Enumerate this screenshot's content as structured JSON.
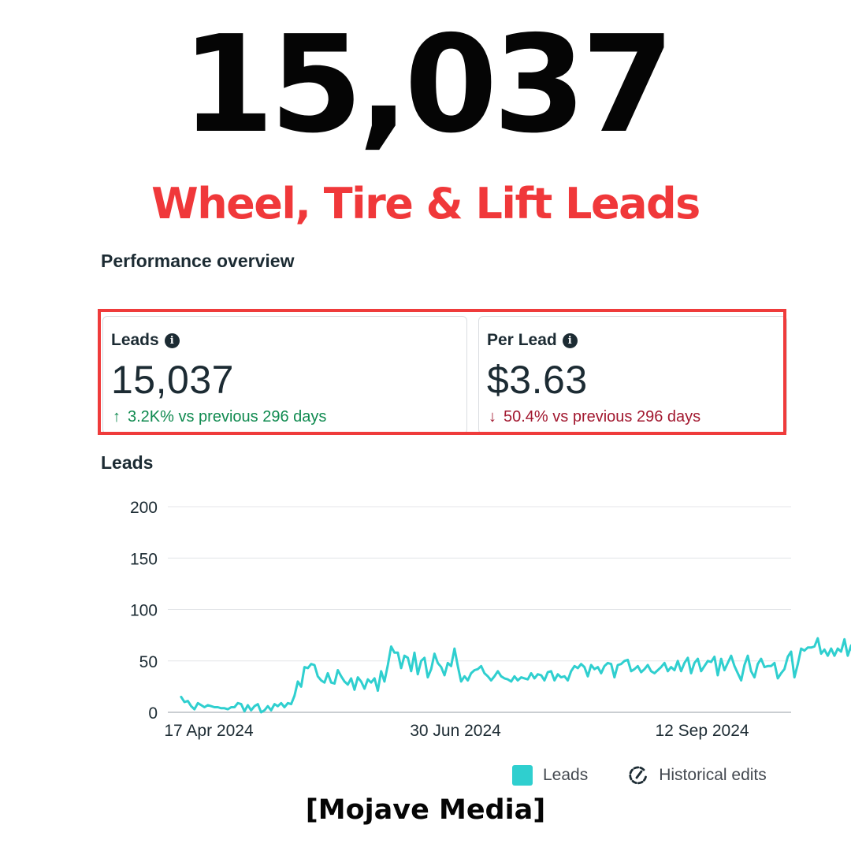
{
  "header": {
    "big_number": "15,037",
    "subtitle": "Wheel, Tire & Lift Leads"
  },
  "overview": {
    "title": "Performance overview",
    "cards": [
      {
        "label": "Leads",
        "value": "15,037",
        "delta_arrow": "↑",
        "delta_text": "3.2K% vs previous 296 days",
        "delta_direction": "up"
      },
      {
        "label": "Per Lead",
        "value": "$3.63",
        "delta_arrow": "↓",
        "delta_text": "50.4% vs previous 296 days",
        "delta_direction": "down"
      }
    ]
  },
  "chart_section": {
    "title": "Leads"
  },
  "chart_data": {
    "type": "line",
    "xlabel": "",
    "ylabel": "",
    "ylim": [
      0,
      200
    ],
    "yticks": [
      0,
      50,
      100,
      150,
      200
    ],
    "x_start": "2024-04-17",
    "x_end": "2024-10-21",
    "x_tick_labels": [
      {
        "date": "2024-04-17",
        "label": "17 Apr 2024"
      },
      {
        "date": "2024-06-30",
        "label": "30 Jun 2024"
      },
      {
        "date": "2024-09-12",
        "label": "12 Sep 2024"
      }
    ],
    "grid": true,
    "series": [
      {
        "name": "Leads",
        "color": "#2fcfcf",
        "start_date": "2024-04-21",
        "values": [
          15,
          10,
          11,
          6,
          3,
          9,
          7,
          5,
          7,
          6,
          5,
          5,
          4,
          4,
          3,
          5,
          5,
          9,
          8,
          1,
          7,
          2,
          6,
          8,
          0,
          2,
          6,
          2,
          8,
          6,
          9,
          5,
          9,
          8,
          16,
          30,
          25,
          44,
          43,
          47,
          46,
          35,
          31,
          29,
          38,
          29,
          28,
          41,
          35,
          30,
          27,
          33,
          22,
          34,
          30,
          23,
          32,
          29,
          33,
          21,
          40,
          30,
          46,
          64,
          58,
          58,
          43,
          55,
          53,
          40,
          58,
          37,
          50,
          53,
          34,
          42,
          57,
          48,
          44,
          36,
          48,
          45,
          62,
          45,
          30,
          35,
          31,
          38,
          41,
          42,
          45,
          38,
          35,
          31,
          35,
          40,
          35,
          33,
          32,
          30,
          35,
          31,
          34,
          33,
          32,
          38,
          33,
          37,
          36,
          31,
          39,
          40,
          31,
          37,
          34,
          35,
          31,
          40,
          45,
          43,
          47,
          44,
          35,
          46,
          42,
          44,
          38,
          45,
          48,
          47,
          34,
          46,
          47,
          50,
          51,
          40,
          42,
          45,
          39,
          42,
          46,
          40,
          38,
          41,
          44,
          48,
          40,
          44,
          41,
          50,
          40,
          48,
          53,
          38,
          48,
          52,
          40,
          45,
          50,
          49,
          54,
          36,
          52,
          41,
          48,
          55,
          45,
          38,
          31,
          46,
          55,
          40,
          34,
          47,
          52,
          44,
          45,
          45,
          48,
          33,
          38,
          42,
          54,
          59,
          34,
          47,
          62,
          60,
          63,
          63,
          64,
          72,
          57,
          61,
          55,
          62,
          55,
          62,
          59,
          71,
          55,
          65,
          48,
          60,
          68,
          54,
          66,
          57,
          64,
          49,
          80,
          75,
          70,
          58,
          56,
          52,
          62,
          64,
          66,
          73
        ]
      }
    ]
  },
  "legend": {
    "leads_label": "Leads",
    "historical_label": "Historical edits"
  },
  "footer": {
    "brand": "[Mojave Media]"
  }
}
